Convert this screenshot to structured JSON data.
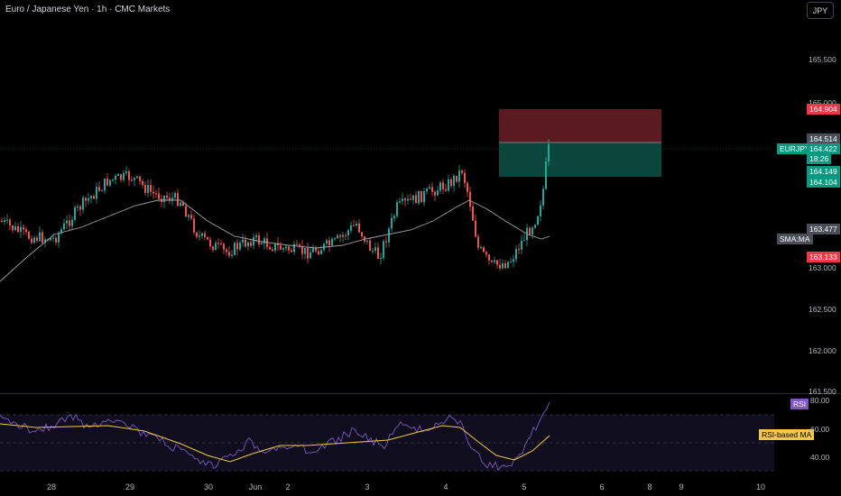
{
  "header": {
    "title": "Euro / Japanese Yen · 1h · CMC Markets",
    "currency_button": "JPY"
  },
  "price_axis": {
    "ticks": [
      "165.500",
      "165.000",
      "163.000",
      "162.500",
      "162.000",
      "161.500"
    ],
    "tags": {
      "stop_loss": "164.904",
      "entry": "164.514",
      "symbol": "EURJPY",
      "last_price": "164.422",
      "countdown": "18:26",
      "bid": "164.149",
      "take_profit": "164.104",
      "sma_value": "163.477",
      "sma_label": "SMA:MA",
      "low": "163.133"
    }
  },
  "rsi_pane": {
    "label": "RSI",
    "ma_label": "RSI-based MA",
    "ticks": [
      "80.00",
      "60.00",
      "40.00"
    ]
  },
  "time_axis": {
    "labels": [
      "28",
      "29",
      "30",
      "Jun",
      "2",
      "3",
      "4",
      "5",
      "6",
      "8",
      "9",
      "10"
    ]
  },
  "colors": {
    "up": "#26a69a",
    "down": "#ef5350",
    "sma": "#9aa0a6",
    "rsi": "#7e57c2",
    "rsi_ma": "#f5c842",
    "stop_zone": "#6b1e24",
    "profit_zone": "#0b4a3e",
    "tag_red": "#f23645",
    "tag_green": "#089981",
    "tag_grey": "#4a4e59"
  }
}
